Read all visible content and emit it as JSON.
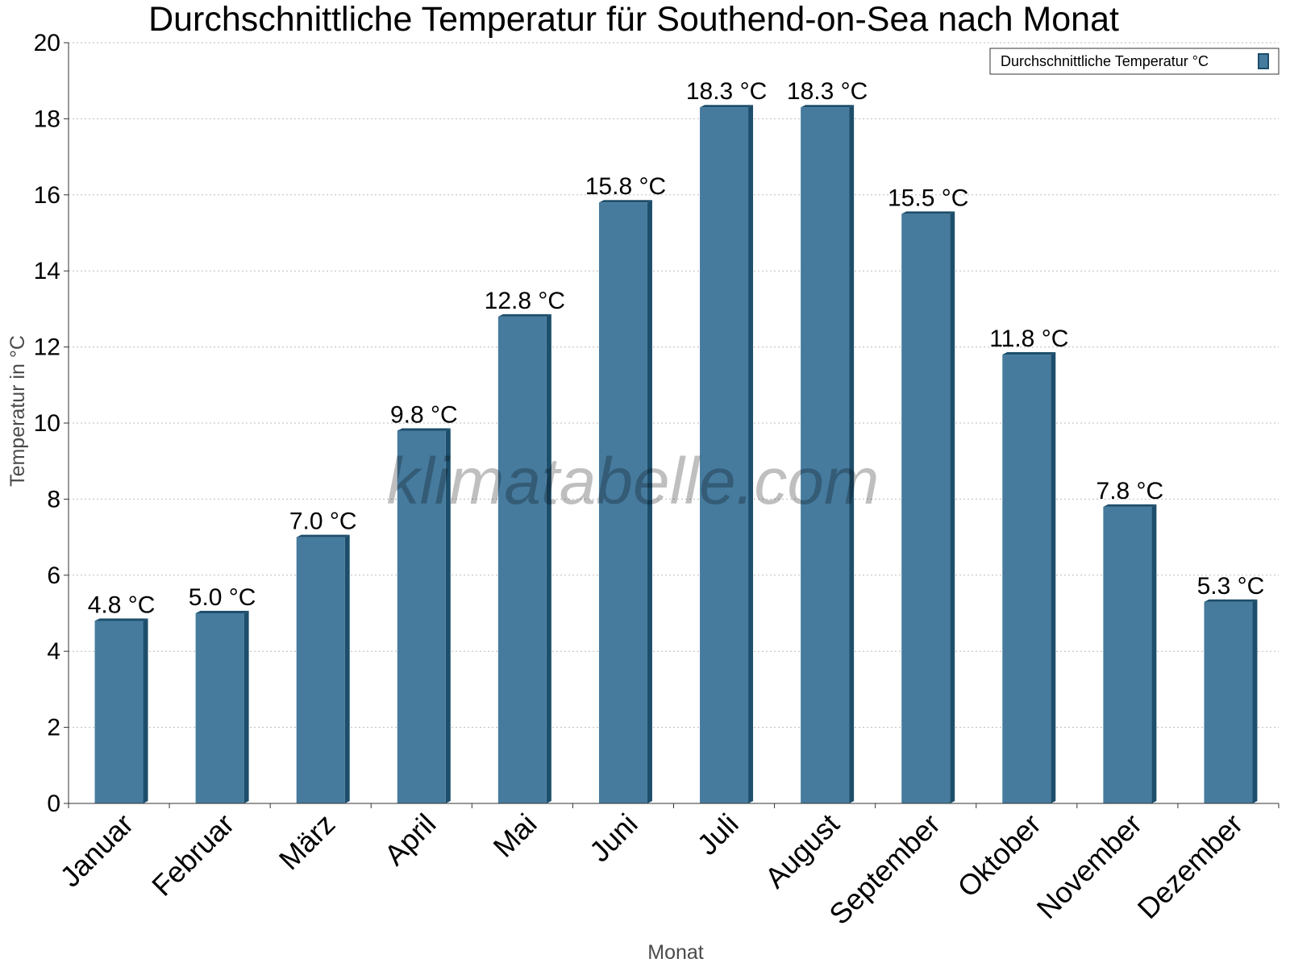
{
  "chart_data": {
    "type": "bar",
    "title": "Durchschnittliche Temperatur für Southend-on-Sea nach Monat",
    "xlabel": "Monat",
    "ylabel": "Temperatur in °C",
    "categories": [
      "Januar",
      "Februar",
      "März",
      "April",
      "Mai",
      "Juni",
      "Juli",
      "August",
      "September",
      "Oktober",
      "November",
      "Dezember"
    ],
    "series": [
      {
        "name": "Durchschnittliche Temperatur °C",
        "values": [
          4.8,
          5.0,
          7.0,
          9.8,
          12.8,
          15.8,
          18.3,
          18.3,
          15.5,
          11.8,
          7.8,
          5.3
        ],
        "labels": [
          "4.8 °C",
          "5.0 °C",
          "7.0 °C",
          "9.8 °C",
          "12.8 °C",
          "15.8 °C",
          "18.3 °C",
          "18.3 °C",
          "15.5 °C",
          "11.8 °C",
          "7.8 °C",
          "5.3 °C"
        ]
      }
    ],
    "ylim": [
      0,
      20
    ],
    "yticks": [
      0,
      2,
      4,
      6,
      8,
      10,
      12,
      14,
      16,
      18,
      20
    ],
    "grid": true,
    "legend_position": "top-right",
    "colors": {
      "bar": "#467b9e",
      "bar_dark": "#1d4e6b",
      "grid": "#bbbbbb",
      "axis": "#333333"
    },
    "watermark": "klimatabelle.com"
  }
}
